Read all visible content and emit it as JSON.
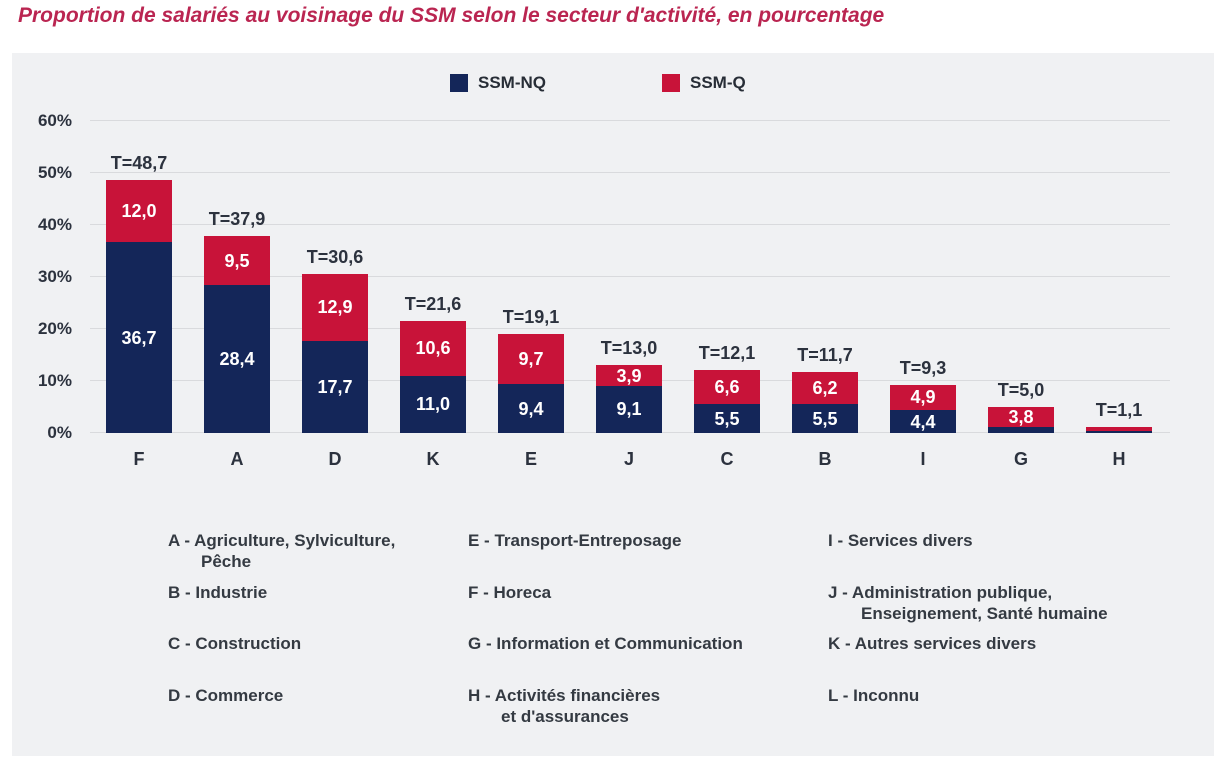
{
  "title": "Proportion de salariés au voisinage du SSM selon le secteur d'activité, en pourcentage",
  "colors": {
    "title_text": "#ba2551",
    "panel_background": "#f0f1f3",
    "gridline": "#d9dadd",
    "axis_text": "#2c323e",
    "bar_value_text": "#ffffff",
    "ssm_nq": "#142659",
    "ssm_q": "#c81339"
  },
  "chart_data": {
    "type": "bar",
    "stacked": true,
    "title": "Proportion de salariés au voisinage du SSM selon le secteur d'activité, en pourcentage",
    "categories": [
      "F",
      "A",
      "D",
      "K",
      "E",
      "J",
      "C",
      "B",
      "I",
      "G",
      "H"
    ],
    "series": [
      {
        "name": "SSM-NQ",
        "color": "#142659",
        "values": [
          36.7,
          28.4,
          17.7,
          11.0,
          9.4,
          9.1,
          5.5,
          5.5,
          4.4,
          1.2,
          0.4
        ],
        "labels": [
          "36,7",
          "28,4",
          "17,7",
          "11,0",
          "9,4",
          "9,1",
          "5,5",
          "5,5",
          "4,4",
          "",
          ""
        ]
      },
      {
        "name": "SSM-Q",
        "color": "#c81339",
        "values": [
          12.0,
          9.5,
          12.9,
          10.6,
          9.7,
          3.9,
          6.6,
          6.2,
          4.9,
          3.8,
          0.7
        ],
        "labels": [
          "12,0",
          "9,5",
          "12,9",
          "10,6",
          "9,7",
          "3,9",
          "6,6",
          "6,2",
          "4,9",
          "3,8",
          ""
        ]
      }
    ],
    "totals": [
      "T=48,7",
      "T=37,9",
      "T=30,6",
      "T=21,6",
      "T=19,1",
      "T=13,0",
      "T=12,1",
      "T=11,7",
      "T=9,3",
      "T=5,0",
      "T=1,1"
    ],
    "ylim": [
      0,
      60
    ],
    "yticks": [
      {
        "value": 0,
        "label": "0%"
      },
      {
        "value": 10,
        "label": "10%"
      },
      {
        "value": 20,
        "label": "20%"
      },
      {
        "value": 30,
        "label": "30%"
      },
      {
        "value": 40,
        "label": "40%"
      },
      {
        "value": 50,
        "label": "50%"
      },
      {
        "value": 60,
        "label": "60%"
      }
    ],
    "grid": true,
    "legend_position": "top"
  },
  "sector_legend": {
    "columns": [
      [
        {
          "text": "A - Agriculture, Sylviculture,\nPêche"
        },
        {
          "text": "B - Industrie"
        },
        {
          "text": "C - Construction"
        },
        {
          "text": "D - Commerce"
        }
      ],
      [
        {
          "text": "E - Transport-Entreposage"
        },
        {
          "text": "F - Horeca"
        },
        {
          "text": "G - Information et Communication"
        },
        {
          "text": "H - Activités financières\net d'assurances"
        }
      ],
      [
        {
          "text": "I - Services divers"
        },
        {
          "text": "J - Administration publique,\nEnseignement, Santé humaine"
        },
        {
          "text": "K - Autres services divers"
        },
        {
          "text": "L - Inconnu"
        }
      ]
    ]
  }
}
